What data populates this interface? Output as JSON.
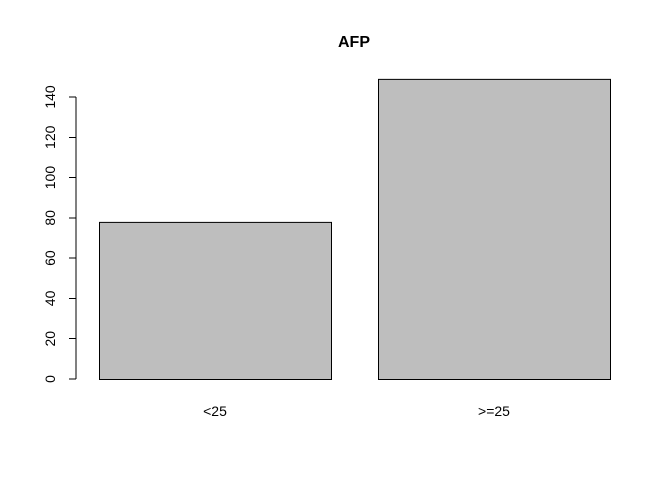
{
  "chart_data": {
    "type": "bar",
    "title": "AFP",
    "categories": [
      "<25",
      ">=25"
    ],
    "values": [
      78,
      149
    ],
    "ylim": [
      0,
      150
    ],
    "yticks": [
      "0",
      "20",
      "40",
      "60",
      "80",
      "100",
      "120",
      "140"
    ],
    "xlabel": "",
    "ylabel": "",
    "grid": false,
    "bar_fill": "#bebebe",
    "bar_stroke": "#000000"
  }
}
